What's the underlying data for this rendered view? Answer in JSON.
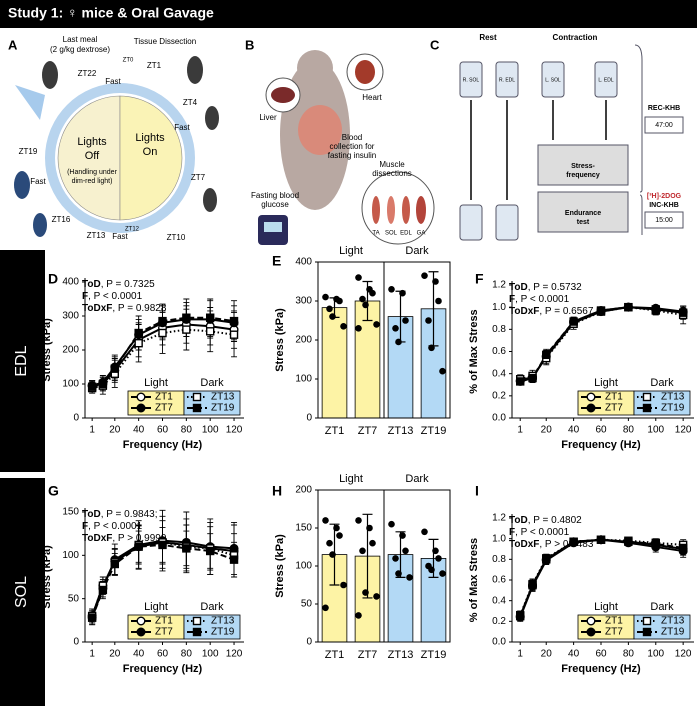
{
  "header": {
    "title": "Study 1: ♀ mice & Oral Gavage"
  },
  "rows": [
    "EDL",
    "SOL"
  ],
  "panel_a": {
    "texts": [
      "A",
      "Last meal",
      "(2 g/kg dextrose)",
      "Tissue Dissection",
      "ZT22",
      "ZT0",
      "ZT1",
      "Fast",
      "ZT4",
      "Fast",
      "ZT19",
      "Fast",
      "Lights",
      "Off",
      "(Handling under",
      "dim-red light)",
      "Lights",
      "On",
      "ZT7",
      "ZT16",
      "ZT13",
      "ZT12",
      "Fast",
      "ZT10"
    ]
  },
  "panel_b": {
    "texts": [
      "B",
      "Heart",
      "Liver",
      "Blood",
      "collection for",
      "fasting insulin",
      "Fasting blood",
      "glucose",
      "Muscle",
      "dissections",
      "TA",
      "SOL",
      "EDL",
      "GA"
    ]
  },
  "panel_c": {
    "texts": [
      "C",
      "Rest",
      "Contraction",
      "R. SOL",
      "R. EDL",
      "L. SOL",
      "L. EDL",
      "REC-KHB",
      "47:00",
      "Stress-",
      "frequency",
      "[³H]-2DOG",
      "INC-KHB",
      "15:00",
      "Endurance",
      "test"
    ]
  },
  "chart_data": [
    {
      "panel": "D",
      "type": "line",
      "stats": [
        {
          "term": "ToD",
          "rest": ", P = 0.7325"
        },
        {
          "term": "F",
          "rest": ", P < 0.0001"
        },
        {
          "term": "ToDxF",
          "rest": ", P = 0.9828"
        }
      ],
      "x": [
        1,
        10,
        20,
        40,
        60,
        80,
        100,
        120
      ],
      "xlim": [
        -5,
        125
      ],
      "xticks": [
        1,
        20,
        40,
        60,
        80,
        100,
        120
      ],
      "ylim": [
        0,
        400
      ],
      "yticks": [
        0,
        100,
        200,
        300,
        400
      ],
      "xlabel": "Frequency (Hz)",
      "ylabel": "Stress (kPa)",
      "legend_groups": [
        {
          "label": "Light",
          "color": "#fdf3a5"
        },
        {
          "label": "Dark",
          "color": "#b3d9f5"
        }
      ],
      "series": [
        {
          "name": "ZT1",
          "marker": "open-circle",
          "line": "solid",
          "color": "#000000",
          "values": [
            95,
            100,
            140,
            230,
            265,
            275,
            270,
            260
          ],
          "errors": [
            15,
            20,
            35,
            50,
            50,
            55,
            55,
            55
          ]
        },
        {
          "name": "ZT7",
          "marker": "filled-circle",
          "line": "solid",
          "color": "#000000",
          "values": [
            95,
            105,
            150,
            245,
            280,
            290,
            290,
            280
          ],
          "errors": [
            15,
            20,
            35,
            45,
            50,
            50,
            55,
            50
          ]
        },
        {
          "name": "ZT13",
          "marker": "open-square",
          "line": "dotted",
          "color": "#000000",
          "values": [
            88,
            95,
            130,
            220,
            250,
            260,
            255,
            245
          ],
          "errors": [
            15,
            25,
            40,
            55,
            60,
            60,
            60,
            65
          ]
        },
        {
          "name": "ZT19",
          "marker": "filled-square",
          "line": "dashed",
          "color": "#000000",
          "values": [
            92,
            100,
            145,
            250,
            285,
            295,
            295,
            285
          ],
          "errors": [
            15,
            20,
            35,
            50,
            50,
            55,
            55,
            60
          ]
        }
      ]
    },
    {
      "panel": "E",
      "type": "bar",
      "groups": [
        "Light",
        "Dark"
      ],
      "categories": [
        "ZT1",
        "ZT7",
        "ZT13",
        "ZT19"
      ],
      "values": [
        283,
        300,
        260,
        280
      ],
      "errors": [
        25,
        50,
        65,
        95
      ],
      "colors": [
        "#fdf3a5",
        "#fdf3a5",
        "#b3d9f5",
        "#b3d9f5"
      ],
      "points": [
        [
          310,
          305,
          300,
          280,
          260,
          235
        ],
        [
          360,
          330,
          320,
          305,
          290,
          240,
          230
        ],
        [
          330,
          320,
          250,
          230,
          195
        ],
        [
          365,
          350,
          300,
          250,
          180,
          120
        ]
      ],
      "ylim": [
        0,
        400
      ],
      "yticks": [
        0,
        100,
        200,
        300,
        400
      ],
      "ylabel": "Stress (kPa)"
    },
    {
      "panel": "F",
      "type": "line",
      "stats": [
        {
          "term": "ToD",
          "rest": ", P = 0.5732"
        },
        {
          "term": "F",
          "rest": ", P < 0.0001"
        },
        {
          "term": "ToDxF",
          "rest": ", P = 0.6567"
        }
      ],
      "x": [
        1,
        10,
        20,
        40,
        60,
        80,
        100,
        120
      ],
      "xlim": [
        -5,
        125
      ],
      "xticks": [
        1,
        20,
        40,
        60,
        80,
        100,
        120
      ],
      "ylim": [
        0,
        1.2
      ],
      "yticks": [
        {
          "value": 0,
          "label": "0.0"
        },
        0.2,
        0.4,
        0.6,
        0.8,
        {
          "value": 1,
          "label": "1.0"
        },
        1.2
      ],
      "xlabel": "Frequency (Hz)",
      "ylabel": "% of Max Stress",
      "legend_groups": [
        {
          "label": "Light",
          "color": "#fdf3a5"
        },
        {
          "label": "Dark",
          "color": "#b3d9f5"
        }
      ],
      "series": [
        {
          "name": "ZT1",
          "marker": "open-circle",
          "line": "solid",
          "color": "#000000",
          "values": [
            0.34,
            0.37,
            0.55,
            0.86,
            0.96,
            1.0,
            0.98,
            0.95
          ],
          "errors": [
            0.03,
            0.04,
            0.06,
            0.04,
            0.02,
            0.01,
            0.03,
            0.06
          ]
        },
        {
          "name": "ZT7",
          "marker": "filled-circle",
          "line": "solid",
          "color": "#000000",
          "values": [
            0.33,
            0.36,
            0.56,
            0.87,
            0.97,
            1.0,
            0.99,
            0.96
          ],
          "errors": [
            0.03,
            0.04,
            0.05,
            0.04,
            0.02,
            0.01,
            0.02,
            0.05
          ]
        },
        {
          "name": "ZT13",
          "marker": "open-square",
          "line": "dotted",
          "color": "#000000",
          "values": [
            0.35,
            0.38,
            0.54,
            0.85,
            0.96,
            1.0,
            0.97,
            0.93
          ],
          "errors": [
            0.04,
            0.05,
            0.06,
            0.05,
            0.02,
            0.01,
            0.04,
            0.08
          ]
        },
        {
          "name": "ZT19",
          "marker": "filled-square",
          "line": "dashed",
          "color": "#000000",
          "values": [
            0.33,
            0.36,
            0.57,
            0.87,
            0.97,
            1.0,
            0.98,
            0.95
          ],
          "errors": [
            0.03,
            0.04,
            0.05,
            0.04,
            0.02,
            0.01,
            0.03,
            0.05
          ]
        }
      ]
    },
    {
      "panel": "G",
      "type": "line",
      "stats": [
        {
          "term": "ToD",
          "rest": ", P = 0.9843;"
        },
        {
          "term": "F",
          "rest": ", P < 0.0001"
        },
        {
          "term": "ToDxF",
          "rest": ", P > 0.9999"
        }
      ],
      "x": [
        1,
        10,
        20,
        40,
        60,
        80,
        100,
        120
      ],
      "xlim": [
        -5,
        125
      ],
      "xticks": [
        1,
        20,
        40,
        60,
        80,
        100,
        120
      ],
      "ylim": [
        0,
        150
      ],
      "yticks": [
        0,
        50,
        100,
        150
      ],
      "xlabel": "Frequency (Hz)",
      "ylabel": "Stress (kPa)",
      "legend_groups": [
        {
          "label": "Light",
          "color": "#fdf3a5"
        },
        {
          "label": "Dark",
          "color": "#b3d9f5"
        }
      ],
      "series": [
        {
          "name": "ZT1",
          "marker": "open-circle",
          "line": "solid",
          "color": "#000000",
          "values": [
            30,
            65,
            93,
            110,
            115,
            112,
            108,
            105
          ],
          "errors": [
            8,
            10,
            15,
            25,
            30,
            30,
            30,
            30
          ]
        },
        {
          "name": "ZT7",
          "marker": "filled-circle",
          "line": "solid",
          "color": "#000000",
          "values": [
            28,
            62,
            95,
            112,
            117,
            115,
            110,
            108
          ],
          "errors": [
            8,
            10,
            18,
            28,
            35,
            35,
            32,
            30
          ]
        },
        {
          "name": "ZT13",
          "marker": "open-square",
          "line": "dotted",
          "color": "#000000",
          "values": [
            30,
            65,
            92,
            112,
            115,
            110,
            108,
            100
          ],
          "errors": [
            8,
            10,
            15,
            22,
            25,
            25,
            25,
            25
          ]
        },
        {
          "name": "ZT19",
          "marker": "filled-square",
          "line": "dashed",
          "color": "#000000",
          "values": [
            28,
            60,
            90,
            110,
            112,
            108,
            105,
            95
          ],
          "errors": [
            8,
            10,
            12,
            18,
            20,
            20,
            20,
            20
          ]
        }
      ]
    },
    {
      "panel": "H",
      "type": "bar",
      "groups": [
        "Light",
        "Dark"
      ],
      "categories": [
        "ZT1",
        "ZT7",
        "ZT13",
        "ZT19"
      ],
      "values": [
        115,
        113,
        115,
        110
      ],
      "errors": [
        40,
        55,
        30,
        25
      ],
      "colors": [
        "#fdf3a5",
        "#fdf3a5",
        "#b3d9f5",
        "#b3d9f5"
      ],
      "points": [
        [
          160,
          150,
          140,
          130,
          115,
          75,
          45
        ],
        [
          160,
          150,
          130,
          120,
          65,
          60,
          35
        ],
        [
          155,
          140,
          120,
          110,
          90,
          85
        ],
        [
          145,
          120,
          110,
          100,
          95,
          90
        ]
      ],
      "ylim": [
        0,
        200
      ],
      "yticks": [
        0,
        50,
        100,
        150,
        200
      ],
      "ylabel": "Stress (kPa)"
    },
    {
      "panel": "I",
      "type": "line",
      "stats": [
        {
          "term": "ToD",
          "rest": ", P = 0.4802"
        },
        {
          "term": "F",
          "rest": ", P < 0.0001"
        },
        {
          "term": "ToDxF",
          "rest": ", P > 0.9483"
        }
      ],
      "x": [
        1,
        10,
        20,
        40,
        60,
        80,
        100,
        120
      ],
      "xlim": [
        -5,
        125
      ],
      "xticks": [
        1,
        20,
        40,
        60,
        80,
        100,
        120
      ],
      "ylim": [
        0,
        1.2
      ],
      "yticks": [
        {
          "value": 0,
          "label": "0.0"
        },
        0.2,
        0.4,
        0.6,
        0.8,
        {
          "value": 1,
          "label": "1.0"
        },
        1.2
      ],
      "xlabel": "Frequency (Hz)",
      "ylabel": "% of Max Stress",
      "legend_groups": [
        {
          "label": "Light",
          "color": "#fdf3a5"
        },
        {
          "label": "Dark",
          "color": "#b3d9f5"
        }
      ],
      "series": [
        {
          "name": "ZT1",
          "marker": "open-circle",
          "line": "solid",
          "color": "#000000",
          "values": [
            0.25,
            0.55,
            0.8,
            0.97,
            0.99,
            0.97,
            0.94,
            0.9
          ],
          "errors": [
            0.04,
            0.05,
            0.04,
            0.02,
            0.01,
            0.03,
            0.05,
            0.06
          ]
        },
        {
          "name": "ZT7",
          "marker": "filled-circle",
          "line": "solid",
          "color": "#000000",
          "values": [
            0.24,
            0.54,
            0.79,
            0.96,
            0.99,
            0.96,
            0.92,
            0.88
          ],
          "errors": [
            0.04,
            0.05,
            0.04,
            0.02,
            0.01,
            0.03,
            0.05,
            0.06
          ]
        },
        {
          "name": "ZT13",
          "marker": "open-square",
          "line": "dotted",
          "color": "#000000",
          "values": [
            0.26,
            0.56,
            0.81,
            0.97,
            0.99,
            0.98,
            0.96,
            0.94
          ],
          "errors": [
            0.04,
            0.05,
            0.04,
            0.02,
            0.01,
            0.03,
            0.04,
            0.05
          ]
        },
        {
          "name": "ZT19",
          "marker": "filled-square",
          "line": "dashed",
          "color": "#000000",
          "values": [
            0.25,
            0.55,
            0.8,
            0.97,
            0.99,
            0.97,
            0.95,
            0.91
          ],
          "errors": [
            0.04,
            0.05,
            0.04,
            0.02,
            0.01,
            0.03,
            0.04,
            0.05
          ]
        }
      ]
    }
  ]
}
